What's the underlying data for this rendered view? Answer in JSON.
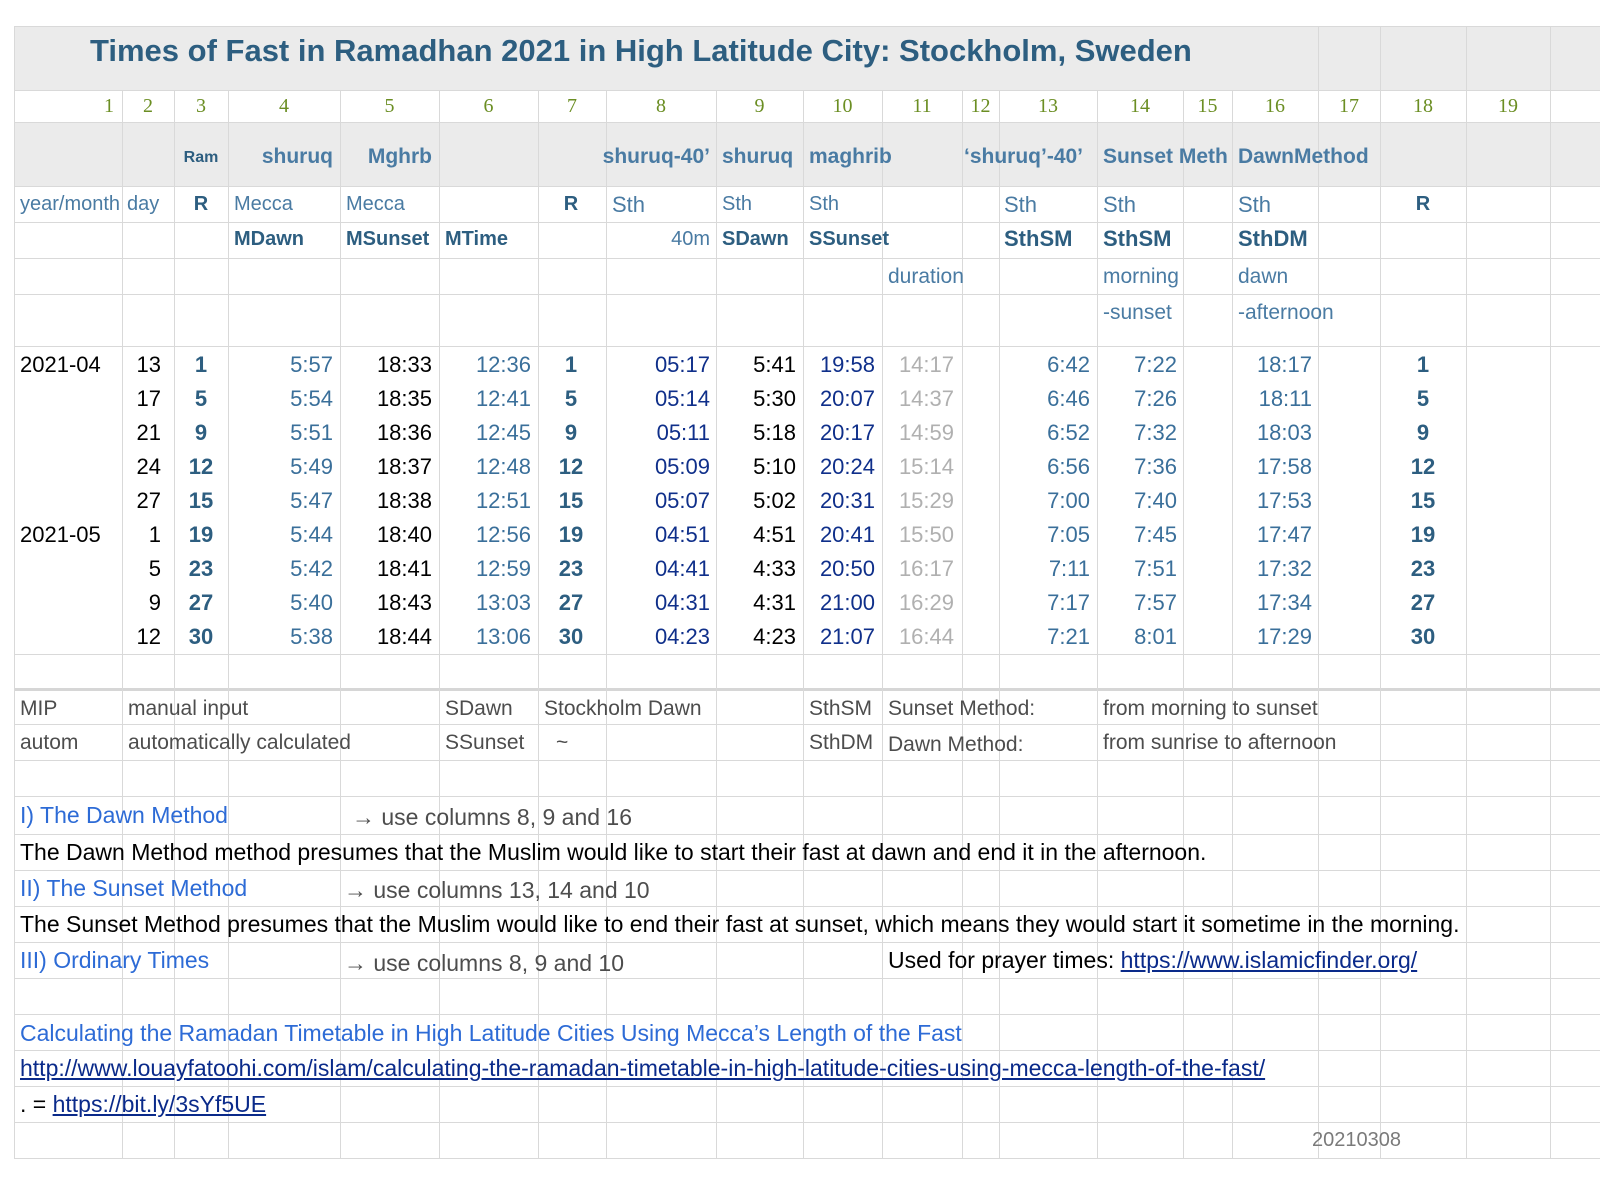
{
  "title": "Times of Fast in Ramadhan 2021 in High Latitude City: Stockholm, Sweden",
  "column_numbers": [
    "1",
    "2",
    "3",
    "4",
    "5",
    "6",
    "7",
    "8",
    "9",
    "10",
    "11",
    "12",
    "13",
    "14",
    "15",
    "16",
    "17",
    "18",
    "19"
  ],
  "headers": {
    "row1": {
      "c3": "Ram",
      "c4": "shuruq",
      "c5": "Mghrb",
      "c8": "shuruq-40’",
      "c9": "shuruq",
      "c10": "maghrib",
      "c13": "‘shuruq’-40’",
      "c14": "Sunset Meth",
      "c16": "DawnMethod"
    },
    "row2": {
      "c1": "year/month",
      "c2": "day",
      "c3": "R",
      "c4": "Mecca",
      "c5": "Mecca",
      "c7": "R",
      "c8": "Sth",
      "c9": "Sth",
      "c10": "Sth",
      "c13": "Sth",
      "c14": "Sth",
      "c16": "Sth",
      "c18": "R"
    },
    "row3": {
      "c4": "MDawn",
      "c5": "MSunset",
      "c6": "MTime",
      "c8": "40m",
      "c9": "SDawn",
      "c10": "SSunset",
      "c13": "SthSM",
      "c14": "SthSM",
      "c16": "SthDM"
    },
    "row4": {
      "c11": "duration",
      "c14": "morning",
      "c16": "dawn"
    },
    "row5": {
      "c14": "-sunset",
      "c16": "-afternoon"
    }
  },
  "rows": [
    {
      "ym": "2021-04",
      "day": "13",
      "r": "1",
      "mdawn": "5:57",
      "msunset": "18:33",
      "mtime": "12:36",
      "r2": "1",
      "c8": "05:17",
      "c9": "5:41",
      "c10": "19:58",
      "c11": "14:17",
      "c13": "6:42",
      "c14": "7:22",
      "c16": "18:17",
      "r3": "1"
    },
    {
      "ym": "",
      "day": "17",
      "r": "5",
      "mdawn": "5:54",
      "msunset": "18:35",
      "mtime": "12:41",
      "r2": "5",
      "c8": "05:14",
      "c9": "5:30",
      "c10": "20:07",
      "c11": "14:37",
      "c13": "6:46",
      "c14": "7:26",
      "c16": "18:11",
      "r3": "5"
    },
    {
      "ym": "",
      "day": "21",
      "r": "9",
      "mdawn": "5:51",
      "msunset": "18:36",
      "mtime": "12:45",
      "r2": "9",
      "c8": "05:11",
      "c9": "5:18",
      "c10": "20:17",
      "c11": "14:59",
      "c13": "6:52",
      "c14": "7:32",
      "c16": "18:03",
      "r3": "9"
    },
    {
      "ym": "",
      "day": "24",
      "r": "12",
      "mdawn": "5:49",
      "msunset": "18:37",
      "mtime": "12:48",
      "r2": "12",
      "c8": "05:09",
      "c9": "5:10",
      "c10": "20:24",
      "c11": "15:14",
      "c13": "6:56",
      "c14": "7:36",
      "c16": "17:58",
      "r3": "12"
    },
    {
      "ym": "",
      "day": "27",
      "r": "15",
      "mdawn": "5:47",
      "msunset": "18:38",
      "mtime": "12:51",
      "r2": "15",
      "c8": "05:07",
      "c9": "5:02",
      "c10": "20:31",
      "c11": "15:29",
      "c13": "7:00",
      "c14": "7:40",
      "c16": "17:53",
      "r3": "15"
    },
    {
      "ym": "2021-05",
      "day": "1",
      "r": "19",
      "mdawn": "5:44",
      "msunset": "18:40",
      "mtime": "12:56",
      "r2": "19",
      "c8": "04:51",
      "c9": "4:51",
      "c10": "20:41",
      "c11": "15:50",
      "c13": "7:05",
      "c14": "7:45",
      "c16": "17:47",
      "r3": "19"
    },
    {
      "ym": "",
      "day": "5",
      "r": "23",
      "mdawn": "5:42",
      "msunset": "18:41",
      "mtime": "12:59",
      "r2": "23",
      "c8": "04:41",
      "c9": "4:33",
      "c10": "20:50",
      "c11": "16:17",
      "c13": "7:11",
      "c14": "7:51",
      "c16": "17:32",
      "r3": "23"
    },
    {
      "ym": "",
      "day": "9",
      "r": "27",
      "mdawn": "5:40",
      "msunset": "18:43",
      "mtime": "13:03",
      "r2": "27",
      "c8": "04:31",
      "c9": "4:31",
      "c10": "21:00",
      "c11": "16:29",
      "c13": "7:17",
      "c14": "7:57",
      "c16": "17:34",
      "r3": "27"
    },
    {
      "ym": "",
      "day": "12",
      "r": "30",
      "mdawn": "5:38",
      "msunset": "18:44",
      "mtime": "13:06",
      "r2": "30",
      "c8": "04:23",
      "c9": "4:23",
      "c10": "21:07",
      "c11": "16:44",
      "c13": "7:21",
      "c14": "8:01",
      "c16": "17:29",
      "r3": "30"
    }
  ],
  "legend": {
    "r1": {
      "a": "MIP",
      "b": "manual input",
      "c": "SDawn",
      "d": "Stockholm Dawn",
      "e": "SthSM",
      "f": "Sunset Method:",
      "g": "from morning to sunset"
    },
    "r2": {
      "a": "autom",
      "b": "automatically calculated",
      "c": "SSunset",
      "d": "~",
      "e": "SthDM",
      "f": "Dawn Method:",
      "g": "from sunrise to afternoon"
    }
  },
  "methods": {
    "m1": {
      "title": "I) The Dawn Method",
      "arrow": "→ use columns 8, 9 and 16",
      "desc": "The Dawn Method method presumes that the Muslim would like to start their fast at dawn and end it in the afternoon."
    },
    "m2": {
      "title": "II) The Sunset Method",
      "arrow": "→ use columns 13, 14 and 10",
      "desc": "The Sunset Method presumes that the Muslim would like to end their fast at sunset, which means they would start it sometime in the morning."
    },
    "m3": {
      "title": "III) Ordinary Times",
      "arrow": "→ use columns 8, 9 and 10",
      "prayer_label": "Used for prayer times: ",
      "prayer_link": "https://www.islamicfinder.org/"
    }
  },
  "footer": {
    "article_title": "Calculating the Ramadan Timetable in High Latitude Cities Using Mecca’s Length of the Fast",
    "article_url": "http://www.louayfatoohi.com/islam/calculating-the-ramadan-timetable-in-high-latitude-cities-using-mecca-length-of-the-fast/",
    "short_prefix": ". = ",
    "short_url": "https://bit.ly/3sYf5UE",
    "date_code": "20210308"
  }
}
